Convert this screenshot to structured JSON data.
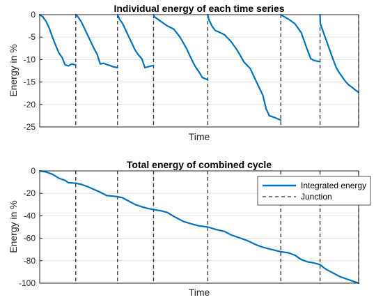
{
  "chart_data": [
    {
      "type": "line",
      "title": "Individual energy of each time series",
      "xlabel": "Time",
      "ylabel": "Energy in %",
      "xlim": [
        0,
        100
      ],
      "ylim": [
        -25,
        0
      ],
      "yticks": [
        -25,
        -20,
        -15,
        -10,
        -5,
        0
      ],
      "grid": true,
      "junctions": [
        11.3,
        24.4,
        35.7,
        52.7,
        75.6,
        87.9,
        100
      ],
      "series": [
        {
          "color": "#0072BD",
          "segments": [
            {
              "x": [
                0,
                1,
                2,
                3,
                4,
                5,
                6,
                7,
                8,
                9,
                10,
                11.3
              ],
              "y": [
                0,
                -0.5,
                -1.5,
                -3,
                -5,
                -6.8,
                -8.5,
                -9.5,
                -11.2,
                -11.4,
                -11.0,
                -11.2
              ]
            },
            {
              "x": [
                11.3,
                12,
                13,
                14,
                15,
                16,
                17,
                18,
                19,
                20,
                21,
                22,
                23,
                24.4
              ],
              "y": [
                0,
                -0.5,
                -1.5,
                -3,
                -4.5,
                -6,
                -7.5,
                -8.8,
                -11,
                -10.8,
                -11.1,
                -11.3,
                -11.6,
                -11.8
              ]
            },
            {
              "x": [
                24.4,
                25,
                26,
                27,
                28,
                29,
                30,
                31,
                32,
                33,
                34,
                35.7
              ],
              "y": [
                0,
                -1,
                -2,
                -3.5,
                -5,
                -6.5,
                -8,
                -9,
                -9.8,
                -11.8,
                -11.6,
                -11.3
              ]
            },
            {
              "x": [
                35.7,
                36,
                38,
                40,
                42,
                44,
                46,
                48,
                49,
                50,
                51,
                52.7
              ],
              "y": [
                0,
                -0.5,
                -1.5,
                -2.5,
                -3.2,
                -5,
                -7.5,
                -10.5,
                -11.8,
                -12.8,
                -14,
                -14.5
              ]
            },
            {
              "x": [
                52.7,
                53,
                54,
                55,
                56,
                58,
                60,
                62,
                64,
                66,
                68,
                70,
                71,
                72,
                74,
                75.6
              ],
              "y": [
                0,
                -1,
                -2.5,
                -3.5,
                -3.8,
                -4.5,
                -6,
                -8,
                -10.5,
                -12,
                -15,
                -18,
                -21,
                -22.5,
                -23,
                -23.5
              ]
            },
            {
              "x": [
                75.6,
                76,
                78,
                80,
                82,
                84,
                85,
                86,
                87.9
              ],
              "y": [
                0,
                -0.2,
                -1,
                -2,
                -4,
                -8,
                -9.8,
                -10.2,
                -10.5
              ]
            },
            {
              "x": [
                87.9,
                88,
                89,
                90,
                91,
                92,
                93,
                94,
                95,
                96,
                97,
                98,
                99,
                100
              ],
              "y": [
                0,
                -2,
                -4,
                -6,
                -8,
                -10,
                -11.8,
                -13,
                -14,
                -15,
                -15.7,
                -16.2,
                -16.8,
                -17.3
              ]
            }
          ]
        }
      ]
    },
    {
      "type": "line",
      "title": "Total energy of combined cycle",
      "xlabel": "Time",
      "ylabel": "Energy in %",
      "xlim": [
        0,
        100
      ],
      "ylim": [
        -100,
        0
      ],
      "yticks": [
        -100,
        -80,
        -60,
        -40,
        -20,
        0
      ],
      "grid": true,
      "legend_position": "top-right",
      "junctions": [
        11.3,
        24.4,
        35.7,
        52.7,
        75.6,
        87.9,
        100
      ],
      "series": [
        {
          "name": "Integrated energy",
          "color": "#0072BD",
          "x": [
            0,
            2,
            4,
            6,
            8,
            9,
            11.3,
            13,
            15,
            17,
            19,
            21,
            23,
            24.4,
            26,
            28,
            30,
            32,
            34,
            35.7,
            38,
            40,
            42,
            45,
            48,
            50,
            52.7,
            55,
            58,
            60,
            62,
            65,
            68,
            70,
            72,
            75.6,
            78,
            80,
            82,
            84,
            86,
            87.9,
            89,
            90,
            92,
            94,
            96,
            98,
            100
          ],
          "y": [
            0,
            -1,
            -3,
            -6.5,
            -8.5,
            -10.5,
            -11,
            -12,
            -14,
            -16.5,
            -19,
            -22,
            -22.5,
            -23,
            -24,
            -27,
            -30,
            -32,
            -33.5,
            -34.5,
            -35.5,
            -37,
            -40.5,
            -45,
            -47.5,
            -49,
            -50,
            -52,
            -54,
            -57,
            -59,
            -62,
            -66,
            -68,
            -69.5,
            -72,
            -73,
            -75,
            -79,
            -81,
            -82,
            -83.5,
            -86,
            -88,
            -91,
            -94,
            -96,
            -98,
            -100
          ]
        },
        {
          "name": "Junction",
          "color": "#333333",
          "style": "dashed"
        }
      ]
    }
  ]
}
